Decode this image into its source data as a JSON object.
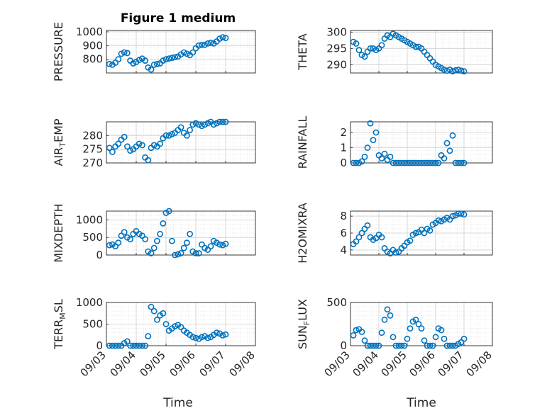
{
  "figure": {
    "title": "Figure 1 medium",
    "xlabel": "Time",
    "x_ticks": [
      "09/03",
      "09/04",
      "09/05",
      "09/06",
      "09/07",
      "09/08"
    ],
    "marker_color": "#0072BD",
    "grid_color": "#dcdcdc"
  },
  "chart_data": [
    {
      "type": "scatter",
      "id": "pressure",
      "ylabel": "PRESSURE",
      "yticks": [
        800,
        900,
        1000
      ],
      "ylim": [
        700,
        1010
      ],
      "grid": true,
      "x": [
        0.1,
        0.2,
        0.3,
        0.4,
        0.5,
        0.6,
        0.7,
        0.8,
        0.9,
        1.0,
        1.1,
        1.2,
        1.3,
        1.4,
        1.5,
        1.6,
        1.7,
        1.8,
        1.9,
        2.0,
        2.1,
        2.2,
        2.3,
        2.4,
        2.5,
        2.6,
        2.7,
        2.8,
        2.9,
        3.0,
        3.1,
        3.2,
        3.3,
        3.4,
        3.5,
        3.6,
        3.7,
        3.8,
        3.9,
        4.0
      ],
      "y": [
        765,
        760,
        775,
        800,
        840,
        850,
        845,
        790,
        770,
        780,
        795,
        805,
        790,
        740,
        725,
        760,
        765,
        770,
        790,
        800,
        805,
        810,
        815,
        820,
        835,
        850,
        840,
        830,
        850,
        880,
        900,
        905,
        905,
        915,
        920,
        915,
        930,
        950,
        960,
        955
      ]
    },
    {
      "type": "scatter",
      "id": "theta",
      "ylabel": "THETA",
      "yticks": [
        290,
        295,
        300
      ],
      "ylim": [
        287.5,
        300.5
      ],
      "grid": true,
      "x": [
        0.1,
        0.2,
        0.3,
        0.4,
        0.5,
        0.6,
        0.7,
        0.8,
        0.9,
        1.0,
        1.1,
        1.2,
        1.3,
        1.4,
        1.5,
        1.6,
        1.7,
        1.8,
        1.9,
        2.0,
        2.1,
        2.2,
        2.3,
        2.4,
        2.5,
        2.6,
        2.7,
        2.8,
        2.9,
        3.0,
        3.1,
        3.2,
        3.3,
        3.4,
        3.5,
        3.6,
        3.7,
        3.8,
        3.9,
        4.0
      ],
      "y": [
        297,
        296.5,
        294.5,
        293,
        292.5,
        294,
        295,
        295,
        294.5,
        295,
        296,
        298,
        299,
        298.5,
        299.5,
        299,
        298.5,
        298,
        297.5,
        297,
        296.5,
        296,
        295.5,
        295.5,
        295,
        294,
        293,
        292,
        291,
        290,
        289.5,
        289,
        288.5,
        288.2,
        288.5,
        288,
        288.3,
        288.5,
        288.2,
        288
      ]
    },
    {
      "type": "scatter",
      "id": "airtemp",
      "ylabel": "AIR",
      "ylabel_sub": "T",
      "ylabel_tail": "EMP",
      "yticks": [
        270,
        275,
        280
      ],
      "ylim": [
        270,
        285
      ],
      "grid": true,
      "x": [
        0.1,
        0.2,
        0.3,
        0.4,
        0.5,
        0.6,
        0.7,
        0.8,
        0.9,
        1.0,
        1.1,
        1.2,
        1.3,
        1.4,
        1.5,
        1.6,
        1.7,
        1.8,
        1.9,
        2.0,
        2.1,
        2.2,
        2.3,
        2.4,
        2.5,
        2.6,
        2.7,
        2.8,
        2.9,
        3.0,
        3.1,
        3.2,
        3.3,
        3.4,
        3.5,
        3.6,
        3.7,
        3.8,
        3.9,
        4.0
      ],
      "y": [
        275.5,
        274,
        276,
        277,
        278.5,
        279.5,
        276,
        274.5,
        275,
        276,
        277,
        276.5,
        272,
        271,
        275.5,
        276.5,
        276,
        277,
        279,
        280,
        280,
        280.5,
        281,
        282,
        283,
        281,
        280,
        282,
        284,
        284.5,
        284,
        283.5,
        284,
        284.5,
        285,
        284,
        284.5,
        285,
        285,
        285
      ]
    },
    {
      "type": "scatter",
      "id": "rainfall",
      "ylabel": "RAINFALL",
      "yticks": [
        0,
        1,
        2
      ],
      "ylim": [
        0,
        2.7
      ],
      "grid": true,
      "x": [
        0.1,
        0.2,
        0.3,
        0.4,
        0.5,
        0.6,
        0.7,
        0.8,
        0.9,
        1.0,
        1.1,
        1.2,
        1.3,
        1.4,
        1.5,
        1.6,
        1.7,
        1.8,
        1.9,
        2.0,
        2.1,
        2.2,
        2.3,
        2.4,
        2.5,
        2.6,
        2.7,
        2.8,
        2.9,
        3.0,
        3.1,
        3.2,
        3.3,
        3.4,
        3.5,
        3.6,
        3.7,
        3.8,
        3.9,
        4.0
      ],
      "y": [
        0,
        0,
        0,
        0.1,
        0.4,
        1.0,
        2.6,
        1.5,
        2.0,
        0.5,
        0.3,
        0.6,
        0.2,
        0.4,
        0,
        0,
        0,
        0,
        0,
        0,
        0,
        0,
        0,
        0,
        0,
        0,
        0,
        0,
        0,
        0,
        0,
        0.5,
        0.3,
        1.3,
        0.8,
        1.8,
        0,
        0,
        0,
        0
      ]
    },
    {
      "type": "scatter",
      "id": "mixdepth",
      "ylabel": "MIXDEPTH",
      "yticks": [
        0,
        500,
        1000
      ],
      "ylim": [
        0,
        1250
      ],
      "grid": true,
      "x": [
        0.1,
        0.2,
        0.3,
        0.4,
        0.5,
        0.6,
        0.7,
        0.8,
        0.9,
        1.0,
        1.1,
        1.2,
        1.3,
        1.4,
        1.5,
        1.6,
        1.7,
        1.8,
        1.9,
        2.0,
        2.1,
        2.2,
        2.3,
        2.4,
        2.5,
        2.6,
        2.7,
        2.8,
        2.9,
        3.0,
        3.1,
        3.2,
        3.3,
        3.4,
        3.5,
        3.6,
        3.7,
        3.8,
        3.9,
        4.0
      ],
      "y": [
        280,
        300,
        250,
        350,
        550,
        650,
        500,
        450,
        600,
        680,
        600,
        550,
        450,
        100,
        50,
        200,
        400,
        600,
        900,
        1200,
        1250,
        400,
        0,
        20,
        50,
        200,
        350,
        600,
        100,
        50,
        50,
        300,
        200,
        150,
        250,
        400,
        350,
        300,
        280,
        320
      ]
    },
    {
      "type": "scatter",
      "id": "h2omixra",
      "ylabel": "H2OMIXRA",
      "yticks": [
        4,
        6,
        8
      ],
      "ylim": [
        3.4,
        8.6
      ],
      "grid": true,
      "x": [
        0.1,
        0.2,
        0.3,
        0.4,
        0.5,
        0.6,
        0.7,
        0.8,
        0.9,
        1.0,
        1.1,
        1.2,
        1.3,
        1.4,
        1.5,
        1.6,
        1.7,
        1.8,
        1.9,
        2.0,
        2.1,
        2.2,
        2.3,
        2.4,
        2.5,
        2.6,
        2.7,
        2.8,
        2.9,
        3.0,
        3.1,
        3.2,
        3.3,
        3.4,
        3.5,
        3.6,
        3.7,
        3.8,
        3.9,
        4.0
      ],
      "y": [
        4.7,
        5.0,
        5.5,
        6.0,
        6.5,
        6.9,
        5.5,
        5.2,
        5.4,
        5.8,
        5.5,
        4.2,
        3.8,
        3.6,
        4.0,
        3.7,
        3.8,
        4.2,
        4.5,
        4.9,
        5.1,
        5.8,
        6.0,
        6.1,
        6.4,
        6.0,
        6.5,
        6.3,
        7.0,
        7.2,
        7.5,
        7.4,
        7.6,
        7.8,
        7.6,
        8.0,
        8.1,
        8.3,
        8.3,
        8.2
      ]
    },
    {
      "type": "scatter",
      "id": "terrmsl",
      "ylabel": "TERR",
      "ylabel_sub": "M",
      "ylabel_tail": "SL",
      "yticks": [
        0,
        500,
        1000
      ],
      "ylim": [
        0,
        1000
      ],
      "grid": true,
      "x": [
        0.1,
        0.2,
        0.3,
        0.4,
        0.5,
        0.6,
        0.7,
        0.8,
        0.9,
        1.0,
        1.1,
        1.2,
        1.3,
        1.4,
        1.5,
        1.6,
        1.7,
        1.8,
        1.9,
        2.0,
        2.1,
        2.2,
        2.3,
        2.4,
        2.5,
        2.6,
        2.7,
        2.8,
        2.9,
        3.0,
        3.1,
        3.2,
        3.3,
        3.4,
        3.5,
        3.6,
        3.7,
        3.8,
        3.9,
        4.0
      ],
      "y": [
        0,
        0,
        0,
        0,
        0,
        60,
        100,
        0,
        0,
        0,
        0,
        0,
        0,
        220,
        900,
        800,
        600,
        700,
        750,
        500,
        350,
        400,
        450,
        480,
        430,
        350,
        300,
        250,
        200,
        180,
        160,
        200,
        220,
        180,
        200,
        250,
        300,
        280,
        240,
        260
      ]
    },
    {
      "type": "scatter",
      "id": "sunflux",
      "ylabel": "SUN",
      "ylabel_sub": "F",
      "ylabel_tail": "LUX",
      "yticks": [
        0,
        500
      ],
      "ylim": [
        0,
        500
      ],
      "grid": true,
      "x": [
        0.1,
        0.2,
        0.3,
        0.4,
        0.5,
        0.6,
        0.7,
        0.8,
        0.9,
        1.0,
        1.1,
        1.2,
        1.3,
        1.4,
        1.5,
        1.6,
        1.7,
        1.8,
        1.9,
        2.0,
        2.1,
        2.2,
        2.3,
        2.4,
        2.5,
        2.6,
        2.7,
        2.8,
        2.9,
        3.0,
        3.1,
        3.2,
        3.3,
        3.4,
        3.5,
        3.6,
        3.7,
        3.8,
        3.9,
        4.0
      ],
      "y": [
        120,
        180,
        190,
        160,
        60,
        0,
        0,
        0,
        0,
        0,
        150,
        300,
        420,
        350,
        100,
        0,
        0,
        0,
        0,
        80,
        200,
        280,
        300,
        250,
        200,
        60,
        0,
        0,
        0,
        100,
        200,
        180,
        80,
        0,
        0,
        0,
        0,
        20,
        40,
        80
      ]
    }
  ]
}
